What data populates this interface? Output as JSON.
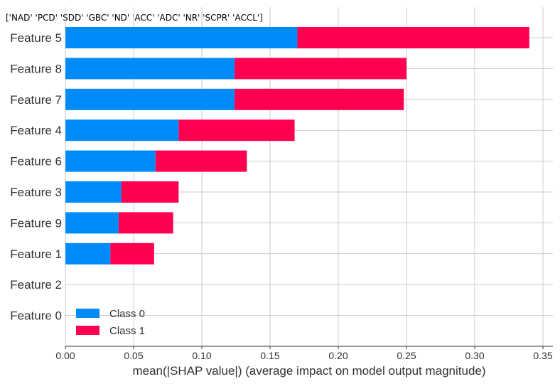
{
  "chart_data": {
    "type": "bar",
    "orientation": "horizontal",
    "stacked": true,
    "title": "['NAD' 'PCD' 'SDD' 'GBC' 'ND' 'ACC' 'ADC' 'NR' 'SCPR' 'ACCL']",
    "xlabel": "mean(|SHAP value|) (average impact on model output magnitude)",
    "ylabel": "",
    "categories": [
      "Feature 5",
      "Feature 8",
      "Feature 7",
      "Feature 4",
      "Feature 6",
      "Feature 3",
      "Feature 9",
      "Feature 1",
      "Feature 2",
      "Feature 0"
    ],
    "series": [
      {
        "name": "Class 0",
        "color": "#008bfb",
        "values": [
          0.17,
          0.124,
          0.124,
          0.083,
          0.066,
          0.041,
          0.039,
          0.033,
          0.0,
          0.0
        ]
      },
      {
        "name": "Class 1",
        "color": "#ff0051",
        "values": [
          0.17,
          0.126,
          0.124,
          0.085,
          0.067,
          0.042,
          0.04,
          0.032,
          0.0,
          0.0
        ]
      }
    ],
    "xlim": [
      0,
      0.355
    ],
    "xticks": [
      "0.00",
      "0.05",
      "0.10",
      "0.15",
      "0.20",
      "0.25",
      "0.30",
      "0.35"
    ],
    "xtick_values": [
      0,
      0.05,
      0.1,
      0.15,
      0.2,
      0.25,
      0.3,
      0.35
    ],
    "grid": true,
    "legend_position": "bottom-left"
  }
}
